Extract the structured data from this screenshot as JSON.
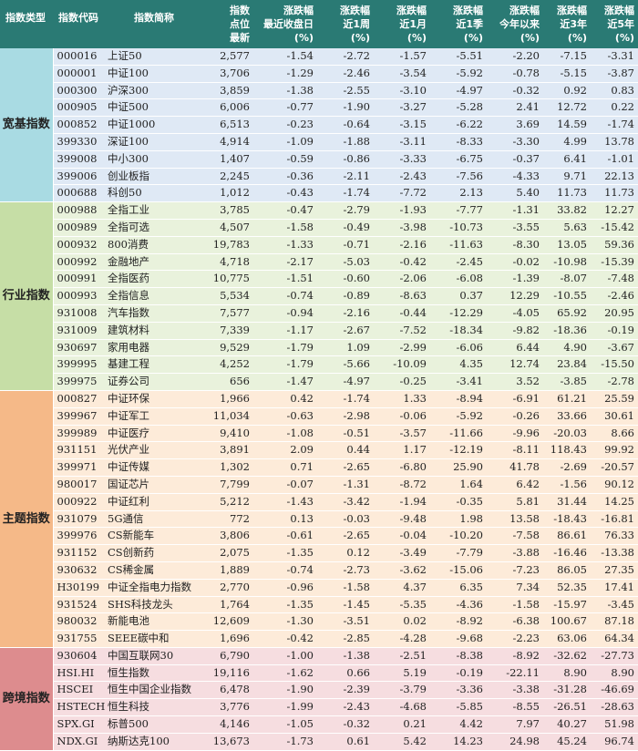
{
  "headers": [
    {
      "l1": "指数类型",
      "l2": "",
      "l3": ""
    },
    {
      "l1": "指数代码",
      "l2": "",
      "l3": ""
    },
    {
      "l1": "指数简称",
      "l2": "",
      "l3": ""
    },
    {
      "l1": "指数",
      "l2": "点位",
      "l3": "最新"
    },
    {
      "l1": "涨跌幅",
      "l2": "最近收盘日",
      "l3": "(%)"
    },
    {
      "l1": "涨跌幅",
      "l2": "近1周",
      "l3": "(%)"
    },
    {
      "l1": "涨跌幅",
      "l2": "近1月",
      "l3": "(%)"
    },
    {
      "l1": "涨跌幅",
      "l2": "近1季",
      "l3": "(%)"
    },
    {
      "l1": "涨跌幅",
      "l2": "今年以来",
      "l3": "(%)"
    },
    {
      "l1": "涨跌幅",
      "l2": "近3年",
      "l3": "(%)"
    },
    {
      "l1": "涨跌幅",
      "l2": "近5年",
      "l3": "(%)"
    }
  ],
  "groups": [
    {
      "key": "kuanji",
      "label": "宽基指数",
      "rows": [
        [
          "000016",
          "上证50",
          "2,577",
          "-1.54",
          "-2.72",
          "-1.57",
          "-5.51",
          "-2.20",
          "-7.15",
          "-3.31"
        ],
        [
          "000001",
          "中证100",
          "3,706",
          "-1.29",
          "-2.46",
          "-3.54",
          "-5.92",
          "-0.78",
          "-5.15",
          "-3.87"
        ],
        [
          "000300",
          "沪深300",
          "3,859",
          "-1.38",
          "-2.55",
          "-3.10",
          "-4.97",
          "-0.32",
          "0.92",
          "0.83"
        ],
        [
          "000905",
          "中证500",
          "6,006",
          "-0.77",
          "-1.90",
          "-3.27",
          "-5.28",
          "2.41",
          "12.72",
          "0.22"
        ],
        [
          "000852",
          "中证1000",
          "6,513",
          "-0.23",
          "-0.64",
          "-3.15",
          "-6.22",
          "3.69",
          "14.59",
          "-1.74"
        ],
        [
          "399330",
          "深证100",
          "4,914",
          "-1.09",
          "-1.88",
          "-3.11",
          "-8.33",
          "-3.30",
          "4.99",
          "13.78"
        ],
        [
          "399008",
          "中小300",
          "1,407",
          "-0.59",
          "-0.86",
          "-3.33",
          "-6.75",
          "-0.37",
          "6.41",
          "-1.01"
        ],
        [
          "399006",
          "创业板指",
          "2,245",
          "-0.36",
          "-2.11",
          "-2.43",
          "-7.56",
          "-4.33",
          "9.71",
          "22.13"
        ],
        [
          "000688",
          "科创50",
          "1,012",
          "-0.43",
          "-1.74",
          "-7.72",
          "2.13",
          "5.40",
          "11.73",
          "11.73"
        ]
      ]
    },
    {
      "key": "hangye",
      "label": "行业指数",
      "rows": [
        [
          "000988",
          "全指工业",
          "3,785",
          "-0.47",
          "-2.79",
          "-1.93",
          "-7.77",
          "-1.31",
          "33.82",
          "12.27"
        ],
        [
          "000989",
          "全指可选",
          "4,507",
          "-1.58",
          "-0.49",
          "-3.98",
          "-10.73",
          "-3.55",
          "5.63",
          "-15.42"
        ],
        [
          "000932",
          "800消费",
          "19,783",
          "-1.33",
          "-0.71",
          "-2.16",
          "-11.63",
          "-8.30",
          "13.05",
          "59.36"
        ],
        [
          "000992",
          "金融地产",
          "4,718",
          "-2.17",
          "-5.03",
          "-0.42",
          "-2.45",
          "-0.02",
          "-10.98",
          "-15.39"
        ],
        [
          "000991",
          "全指医药",
          "10,775",
          "-1.51",
          "-0.60",
          "-2.06",
          "-6.08",
          "-1.39",
          "-8.07",
          "-7.48"
        ],
        [
          "000993",
          "全指信息",
          "5,534",
          "-0.74",
          "-0.89",
          "-8.63",
          "0.37",
          "12.29",
          "-10.55",
          "-2.46"
        ],
        [
          "931008",
          "汽车指数",
          "7,577",
          "-0.94",
          "-2.16",
          "-0.44",
          "-12.29",
          "-4.05",
          "65.92",
          "20.95"
        ],
        [
          "931009",
          "建筑材料",
          "7,339",
          "-1.17",
          "-2.67",
          "-7.52",
          "-18.34",
          "-9.82",
          "-18.36",
          "-0.19"
        ],
        [
          "930697",
          "家用电器",
          "9,529",
          "-1.79",
          "1.09",
          "-2.99",
          "-6.06",
          "6.44",
          "4.90",
          "-3.67"
        ],
        [
          "399995",
          "基建工程",
          "4,252",
          "-1.79",
          "-5.66",
          "-10.09",
          "4.35",
          "12.74",
          "23.84",
          "-15.50"
        ],
        [
          "399975",
          "证券公司",
          "656",
          "-1.47",
          "-4.97",
          "-0.25",
          "-3.41",
          "3.52",
          "-3.85",
          "-2.78"
        ]
      ]
    },
    {
      "key": "zhuti",
      "label": "主题指数",
      "rows": [
        [
          "000827",
          "中证环保",
          "1,966",
          "0.42",
          "-1.74",
          "1.33",
          "-8.94",
          "-6.91",
          "61.21",
          "25.59"
        ],
        [
          "399967",
          "中证军工",
          "11,034",
          "-0.63",
          "-2.98",
          "-0.06",
          "-5.92",
          "-0.26",
          "33.66",
          "30.61"
        ],
        [
          "399989",
          "中证医疗",
          "9,410",
          "-1.08",
          "-0.51",
          "-3.57",
          "-11.66",
          "-9.96",
          "-20.03",
          "8.66"
        ],
        [
          "931151",
          "光伏产业",
          "3,891",
          "2.09",
          "0.44",
          "1.17",
          "-12.19",
          "-8.11",
          "118.43",
          "99.92"
        ],
        [
          "399971",
          "中证传媒",
          "1,302",
          "0.71",
          "-2.65",
          "-6.80",
          "25.90",
          "41.78",
          "-2.69",
          "-20.57"
        ],
        [
          "980017",
          "国证芯片",
          "7,799",
          "-0.07",
          "-1.31",
          "-8.72",
          "1.64",
          "6.42",
          "-1.56",
          "90.12"
        ],
        [
          "000922",
          "中证红利",
          "5,212",
          "-1.43",
          "-3.42",
          "-1.94",
          "-0.35",
          "5.81",
          "31.44",
          "14.25"
        ],
        [
          "931079",
          "5G通信",
          "772",
          "0.13",
          "-0.03",
          "-9.48",
          "1.98",
          "13.58",
          "-18.43",
          "-16.81"
        ],
        [
          "399976",
          "CS新能车",
          "3,806",
          "-0.61",
          "-2.65",
          "-0.04",
          "-10.20",
          "-7.58",
          "86.61",
          "76.33"
        ],
        [
          "931152",
          "CS创新药",
          "2,075",
          "-1.35",
          "0.12",
          "-3.49",
          "-7.79",
          "-3.88",
          "-16.46",
          "-13.38"
        ],
        [
          "930632",
          "CS稀金属",
          "1,889",
          "-0.74",
          "-2.73",
          "-3.62",
          "-15.06",
          "-7.23",
          "86.05",
          "27.35"
        ],
        [
          "H30199",
          "中证全指电力指数",
          "2,770",
          "-0.96",
          "-1.58",
          "4.37",
          "6.35",
          "7.34",
          "52.35",
          "17.41"
        ],
        [
          "931524",
          "SHS科技龙头",
          "1,764",
          "-1.35",
          "-1.45",
          "-5.35",
          "-4.36",
          "-1.58",
          "-15.97",
          "-3.45"
        ],
        [
          "980032",
          "新能电池",
          "12,609",
          "-1.30",
          "-3.51",
          "0.02",
          "-8.92",
          "-6.38",
          "100.67",
          "87.18"
        ],
        [
          "931755",
          "SEEE碳中和",
          "1,696",
          "-0.42",
          "-2.85",
          "-4.28",
          "-9.68",
          "-2.23",
          "63.06",
          "64.34"
        ]
      ]
    },
    {
      "key": "kuajing",
      "label": "跨境指数",
      "rows": [
        [
          "930604",
          "中国互联网30",
          "6,790",
          "-1.00",
          "-1.38",
          "-2.51",
          "-8.38",
          "-8.92",
          "-32.62",
          "-27.73"
        ],
        [
          "HSI.HI",
          "恒生指数",
          "19,116",
          "-1.62",
          "0.66",
          "5.19",
          "-0.19",
          "-22.11",
          "8.90",
          "8.90"
        ],
        [
          "HSCEI",
          "恒生中国企业指数",
          "6,478",
          "-1.90",
          "-2.39",
          "-3.79",
          "-3.36",
          "-3.38",
          "-31.28",
          "-46.69"
        ],
        [
          "HSTECH",
          "恒生科技",
          "3,776",
          "-1.99",
          "-2.43",
          "-4.68",
          "-5.85",
          "-8.55",
          "-26.51",
          "-28.63"
        ],
        [
          "SPX.GI",
          "标普500",
          "4,146",
          "-1.05",
          "-0.32",
          "0.21",
          "4.42",
          "7.97",
          "40.27",
          "51.98"
        ],
        [
          "NDX.GI",
          "纳斯达克100",
          "13,673",
          "-1.73",
          "0.61",
          "5.42",
          "14.23",
          "24.98",
          "45.24",
          "96.74"
        ]
      ]
    }
  ]
}
